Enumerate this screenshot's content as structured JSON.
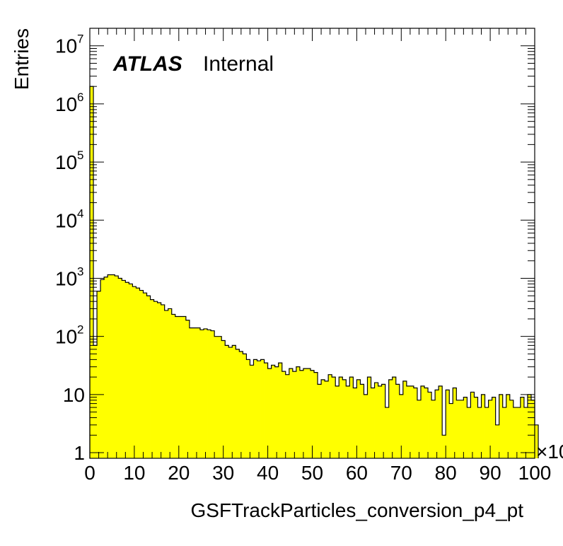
{
  "chart_data": {
    "type": "bar",
    "title": "",
    "xlabel": "GSFTrackParticles_conversion_p4_pt",
    "ylabel": "Entries",
    "x_multiplier_label": "×10",
    "label": {
      "experiment": "ATLAS",
      "status": "Internal"
    },
    "xlim": [
      0,
      100
    ],
    "ylim": [
      0.8,
      20000000
    ],
    "log_y": true,
    "grid": false,
    "legend": "none",
    "x_tick_labels": [
      "0",
      "10",
      "20",
      "30",
      "40",
      "50",
      "60",
      "70",
      "80",
      "90",
      "100"
    ],
    "y_tick_labels": [
      {
        "base": "1",
        "exp": ""
      },
      {
        "base": "10",
        "exp": ""
      },
      {
        "base": "10",
        "exp": "2"
      },
      {
        "base": "10",
        "exp": "3"
      },
      {
        "base": "10",
        "exp": "4"
      },
      {
        "base": "10",
        "exp": "5"
      },
      {
        "base": "10",
        "exp": "6"
      },
      {
        "base": "10",
        "exp": "7"
      }
    ],
    "fill_color": "#ffff00",
    "line_color": "#000000",
    "bin_width": 0.8,
    "values": [
      2000000,
      70,
      600,
      950,
      1050,
      1150,
      1150,
      1100,
      1000,
      920,
      850,
      800,
      720,
      680,
      620,
      560,
      500,
      430,
      400,
      380,
      350,
      280,
      300,
      240,
      220,
      220,
      220,
      190,
      140,
      140,
      140,
      130,
      135,
      130,
      125,
      100,
      100,
      85,
      70,
      65,
      70,
      60,
      55,
      50,
      40,
      32,
      40,
      38,
      40,
      35,
      28,
      32,
      30,
      35,
      25,
      22,
      28,
      25,
      30,
      26,
      28,
      28,
      26,
      24,
      15,
      18,
      17,
      22,
      20,
      14,
      20,
      18,
      14,
      20,
      13,
      18,
      15,
      10,
      20,
      13,
      16,
      14,
      15,
      6,
      18,
      20,
      15,
      10,
      17,
      14,
      14,
      13,
      8,
      14,
      13,
      11,
      8,
      12,
      14,
      2,
      12,
      7,
      13,
      8,
      8,
      9,
      6,
      11,
      9,
      6,
      10,
      6,
      8,
      9,
      3,
      10,
      6,
      10,
      8,
      6,
      6,
      9,
      6,
      10,
      8,
      3
    ]
  }
}
